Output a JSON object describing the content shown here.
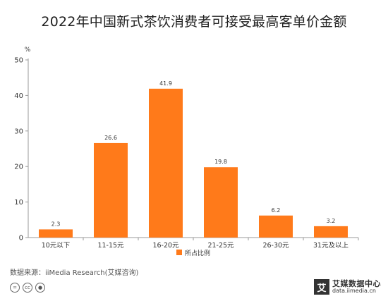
{
  "title": "2022年中国新式茶饮消费者可接受最高客单价金额",
  "colors": {
    "bar": "#FF7A1A",
    "axis": "#999999",
    "text": "#333333"
  },
  "chart_data": {
    "type": "bar",
    "title": "2022年中国新式茶饮消费者可接受最高客单价金额",
    "categories": [
      "10元以下",
      "11-15元",
      "16-20元",
      "21-25元",
      "26-30元",
      "31元及以上"
    ],
    "series": [
      {
        "name": "所占比例",
        "values": [
          2.3,
          26.6,
          41.9,
          19.8,
          6.2,
          3.2
        ]
      }
    ],
    "y_unit": "%",
    "ylim": [
      0,
      50
    ],
    "yticks": [
      0,
      10,
      20,
      30,
      40,
      50
    ],
    "grid": false,
    "legend": "bottom"
  },
  "source": "数据来源：iiMedia Research(艾媒咨询)",
  "license_icons": [
    "equals-icon",
    "cc-icon",
    "person-icon"
  ],
  "brand": {
    "mark": "艾",
    "name": "艾媒数据中心",
    "url": "data.iimedia.cn"
  }
}
